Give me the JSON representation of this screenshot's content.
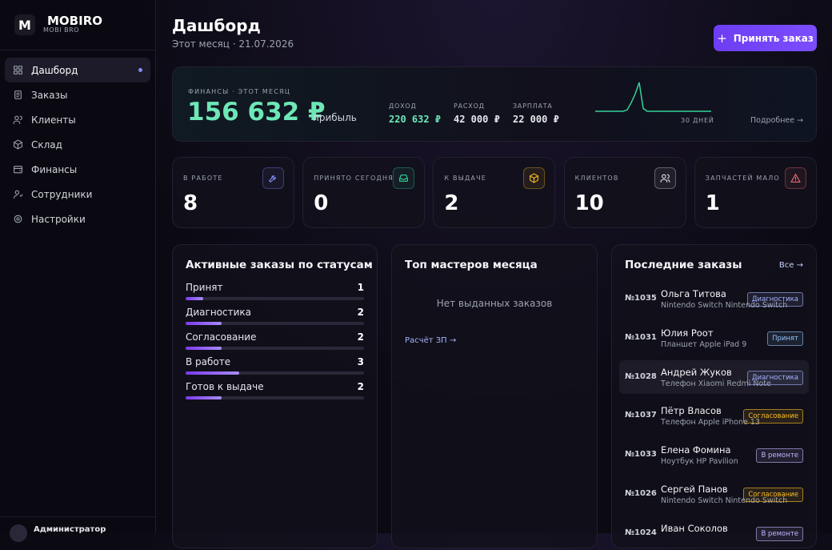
{
  "sidebar": {
    "logo": "M",
    "brand": "MOBIRO",
    "brand_sub": "MOBI BRO",
    "nav": [
      "Дашборд",
      "Заказы",
      "Клиенты",
      "Склад",
      "Финансы",
      "Сотрудники",
      "Настройки"
    ],
    "user": "Администратор"
  },
  "header": {
    "title": "Дашборд",
    "subtitle": "Этот месяц · 21.07.2026",
    "button": "Принять заказ"
  },
  "finance": {
    "label": "ФИНАНСЫ · ЭТОТ МЕСЯЦ",
    "profit": "156 632 ₽",
    "profit_label": "прибыль",
    "stats": [
      {
        "label": "ДОХОД",
        "value": "220 632 ₽",
        "color": "#6ee7b7"
      },
      {
        "label": "РАСХОД",
        "value": "42 000 ₽",
        "color": "#e5e7eb"
      },
      {
        "label": "ЗАРПЛАТА",
        "value": "22 000 ₽",
        "color": "#e5e7eb"
      }
    ],
    "sparkline": [
      0,
      0,
      0,
      0,
      0,
      0,
      0,
      0,
      5,
      30,
      60,
      100,
      10,
      0,
      0,
      0,
      0,
      0,
      0,
      0,
      0,
      0,
      0,
      0,
      0,
      0,
      0,
      0,
      0,
      0
    ],
    "period": "30 ДНЕЙ",
    "more": "Подробнее →"
  },
  "kpis": [
    {
      "label": "В РАБОТЕ",
      "value": 8,
      "color": "#818cf8"
    },
    {
      "label": "ПРИНЯТО СЕГОДНЯ",
      "value": 0,
      "color": "#34d399"
    },
    {
      "label": "К ВЫДАЧЕ",
      "value": 2,
      "color": "#fbbf24"
    },
    {
      "label": "КЛИЕНТОВ",
      "value": 10,
      "color": "#e5e7eb"
    },
    {
      "label": "ЗАПЧАСТЕЙ МАЛО",
      "value": 1,
      "color": "#f87171"
    }
  ],
  "statuses": {
    "title": "Активные заказы по статусам",
    "rows": [
      {
        "name": "Принят",
        "count": 1
      },
      {
        "name": "Диагностика",
        "count": 2
      },
      {
        "name": "Согласование",
        "count": 2
      },
      {
        "name": "В работе",
        "count": 3
      },
      {
        "name": "Готов к выдаче",
        "count": 2
      }
    ]
  },
  "masters": {
    "title": "Топ мастеров месяца",
    "empty": "Нет выданных заказов",
    "link": "Расчёт ЗП →"
  },
  "orders": {
    "title": "Последние заказы",
    "link": "Все →",
    "rows": [
      {
        "id": "№1035",
        "client": "Ольга Титова",
        "device": "Nintendo Switch Nintendo Switch",
        "status": "Диагностика",
        "color": "#a5b4fc"
      },
      {
        "id": "№1031",
        "client": "Юлия Роот",
        "device": "Планшет Apple iPad 9",
        "status": "Принят",
        "color": "#93c5fd"
      },
      {
        "id": "№1028",
        "client": "Андрей Жуков",
        "device": "Телефон Xiaomi Redmi Note",
        "status": "Диагностика",
        "color": "#a5b4fc"
      },
      {
        "id": "№1037",
        "client": "Пётр Власов",
        "device": "Телефон Apple iPhone 13",
        "status": "Согласование",
        "color": "#fbbf24"
      },
      {
        "id": "№1033",
        "client": "Елена Фомина",
        "device": "Ноутбук HP Pavilion",
        "status": "В ремонте",
        "color": "#c4b5fd"
      },
      {
        "id": "№1026",
        "client": "Сергей Панов",
        "device": "Nintendo Switch Nintendo Switch",
        "status": "Согласование",
        "color": "#fbbf24"
      },
      {
        "id": "№1024",
        "client": "Иван Соколов",
        "status": "В ремонте",
        "color": "#c4b5fd"
      }
    ]
  }
}
